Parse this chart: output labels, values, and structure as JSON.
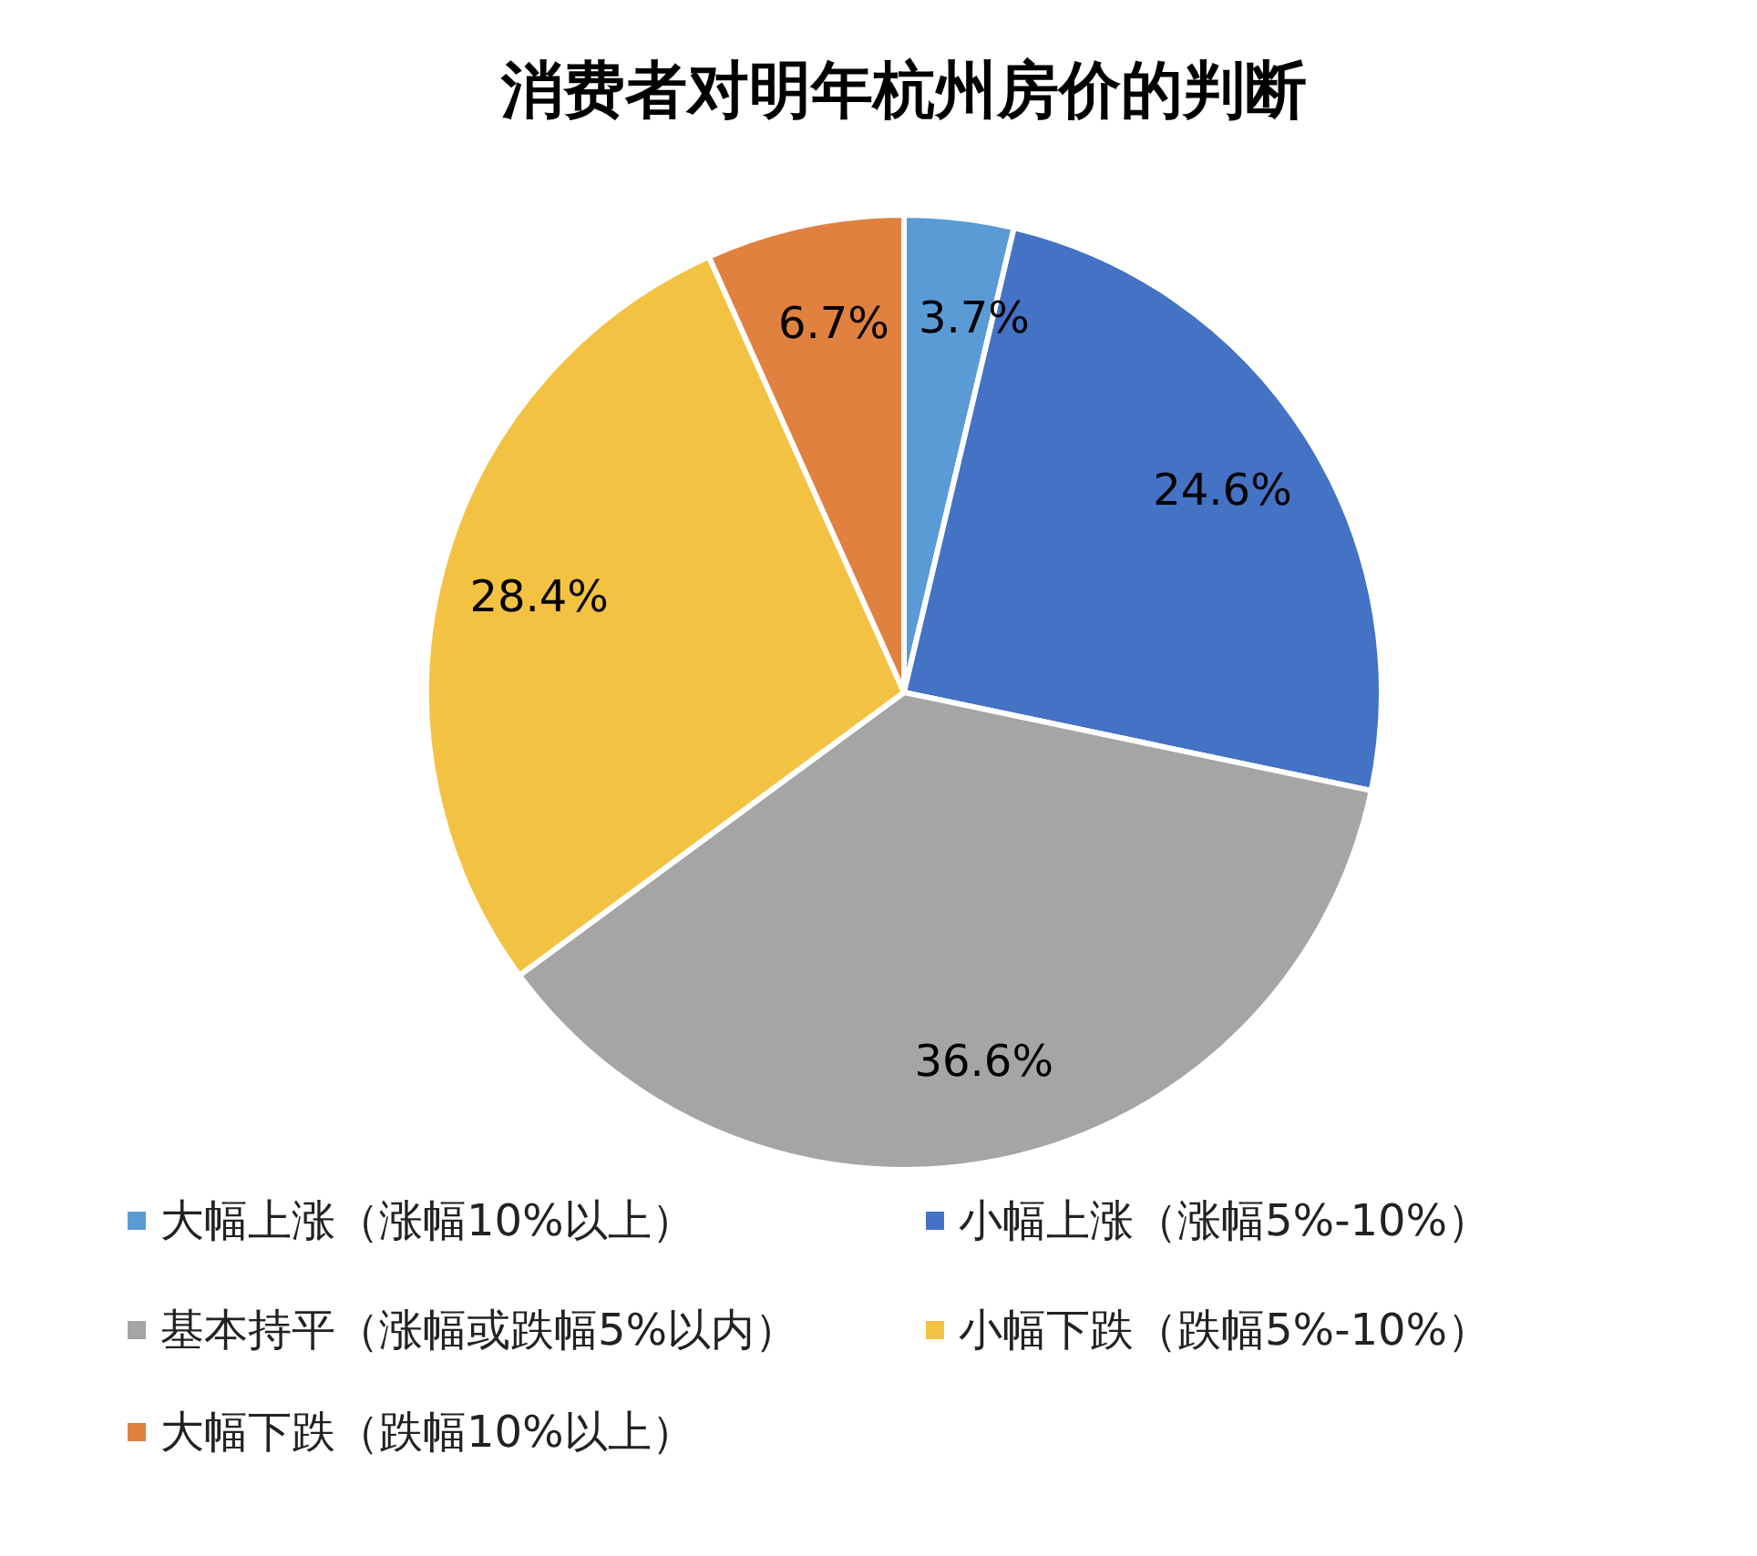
{
  "chart_data": {
    "type": "pie",
    "title": "消费者对明年杭州房价的判断",
    "categories": [
      "大幅上涨（涨幅10%以上）",
      "小幅上涨（涨幅5%-10%）",
      "基本持平（涨幅或跌幅5%以内）",
      "小幅下跌（跌幅5%-10%）",
      "大幅下跌（跌幅10%以上）"
    ],
    "values": [
      3.7,
      24.6,
      36.6,
      28.4,
      6.7
    ],
    "value_labels": [
      "3.7%",
      "24.6%",
      "36.6%",
      "28.4%",
      "6.7%"
    ],
    "colors": [
      "#5b9bd5",
      "#4472c4",
      "#a5a5a5",
      "#f4c242",
      "#e0813f"
    ],
    "legend": "bottom"
  }
}
